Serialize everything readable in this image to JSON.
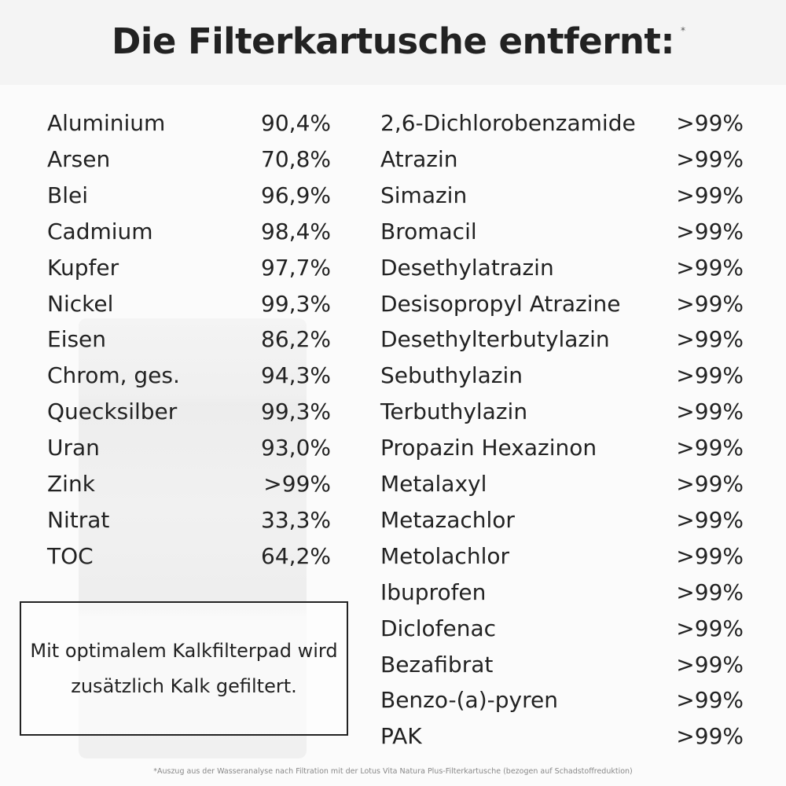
{
  "title": "Die Filterkartusche entfernt:",
  "title_mark": "*",
  "left": [
    {
      "name": "Aluminium",
      "value": "90,4%"
    },
    {
      "name": "Arsen",
      "value": "70,8%"
    },
    {
      "name": "Blei",
      "value": "96,9%"
    },
    {
      "name": "Cadmium",
      "value": "98,4%"
    },
    {
      "name": "Kupfer",
      "value": "97,7%"
    },
    {
      "name": "Nickel",
      "value": "99,3%"
    },
    {
      "name": "Eisen",
      "value": "86,2%"
    },
    {
      "name": "Chrom, ges.",
      "value": "94,3%"
    },
    {
      "name": "Quecksilber",
      "value": "99,3%"
    },
    {
      "name": "Uran",
      "value": "93,0%"
    },
    {
      "name": "Zink",
      "value": ">99%"
    },
    {
      "name": "Nitrat",
      "value": "33,3%"
    },
    {
      "name": "TOC",
      "value": "64,2%"
    }
  ],
  "right": [
    {
      "name": "2,6-Dichlorobenzamide",
      "value": ">99%"
    },
    {
      "name": "Atrazin",
      "value": ">99%"
    },
    {
      "name": "Simazin",
      "value": ">99%"
    },
    {
      "name": "Bromacil",
      "value": ">99%"
    },
    {
      "name": "Desethylatrazin",
      "value": ">99%"
    },
    {
      "name": "Desisopropyl Atrazine",
      "value": ">99%"
    },
    {
      "name": "Desethylterbutylazin",
      "value": ">99%"
    },
    {
      "name": "Sebuthylazin",
      "value": ">99%"
    },
    {
      "name": "Terbuthylazin",
      "value": ">99%"
    },
    {
      "name": "Propazin Hexazinon",
      "value": ">99%"
    },
    {
      "name": "Metalaxyl",
      "value": ">99%"
    },
    {
      "name": "Metazachlor",
      "value": ">99%"
    },
    {
      "name": "Metolachlor",
      "value": ">99%"
    },
    {
      "name": "Ibuprofen",
      "value": ">99%"
    },
    {
      "name": "Diclofenac",
      "value": ">99%"
    },
    {
      "name": "Bezafibrat",
      "value": ">99%"
    },
    {
      "name": "Benzo-(a)-pyren",
      "value": ">99%"
    },
    {
      "name": "PAK",
      "value": ">99%"
    }
  ],
  "note": "Mit optimalem Kalkfilterpad wird zusätzlich Kalk gefiltert.",
  "footnote": "*Auszug aus der Wasseranalyse nach Filtration mit der Lotus Vita Natura Plus-Filterkartusche (bezogen auf Schadstoffreduktion)"
}
